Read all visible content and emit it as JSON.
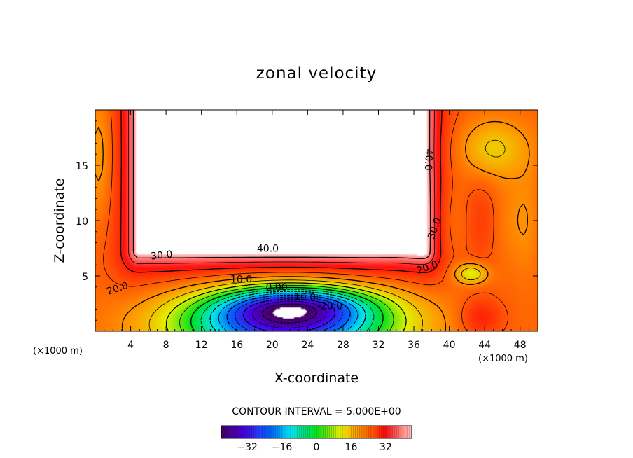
{
  "chart_data": {
    "type": "heatmap",
    "title": "zonal velocity",
    "xlabel": "X-coordinate",
    "ylabel": "Z-coordinate",
    "x_unit_label": "(×1000 m)",
    "xlim": [
      0,
      50
    ],
    "ylim": [
      0,
      20
    ],
    "x_ticks": [
      "4",
      "8",
      "12",
      "16",
      "20",
      "24",
      "28",
      "32",
      "36",
      "40",
      "44",
      "48"
    ],
    "y_ticks": [
      "5",
      "10",
      "15"
    ],
    "contour_labels": [
      "40.0",
      "30.0",
      "20.0",
      "10.0",
      "0.00",
      "-10.0",
      "-20.0",
      "40.0",
      "30.0",
      "20.0"
    ],
    "contour_interval_text": "CONTOUR INTERVAL = 5.000E+00",
    "contour_interval": 5.0,
    "colorbar": {
      "min": -44,
      "max": 44,
      "ticks": [
        "-32",
        "-16",
        "0",
        "16",
        "32"
      ]
    },
    "features": [
      {
        "name": "masked-obstacle-top",
        "value_range": "above 44"
      },
      {
        "name": "masked-obstacle-bottom",
        "value_range": "below -44"
      },
      {
        "name": "reversed-flow-core",
        "approx_min": -40
      },
      {
        "name": "recirculation-eddy",
        "x": 42.5,
        "z": 5.2,
        "approx_value": 10
      }
    ]
  }
}
